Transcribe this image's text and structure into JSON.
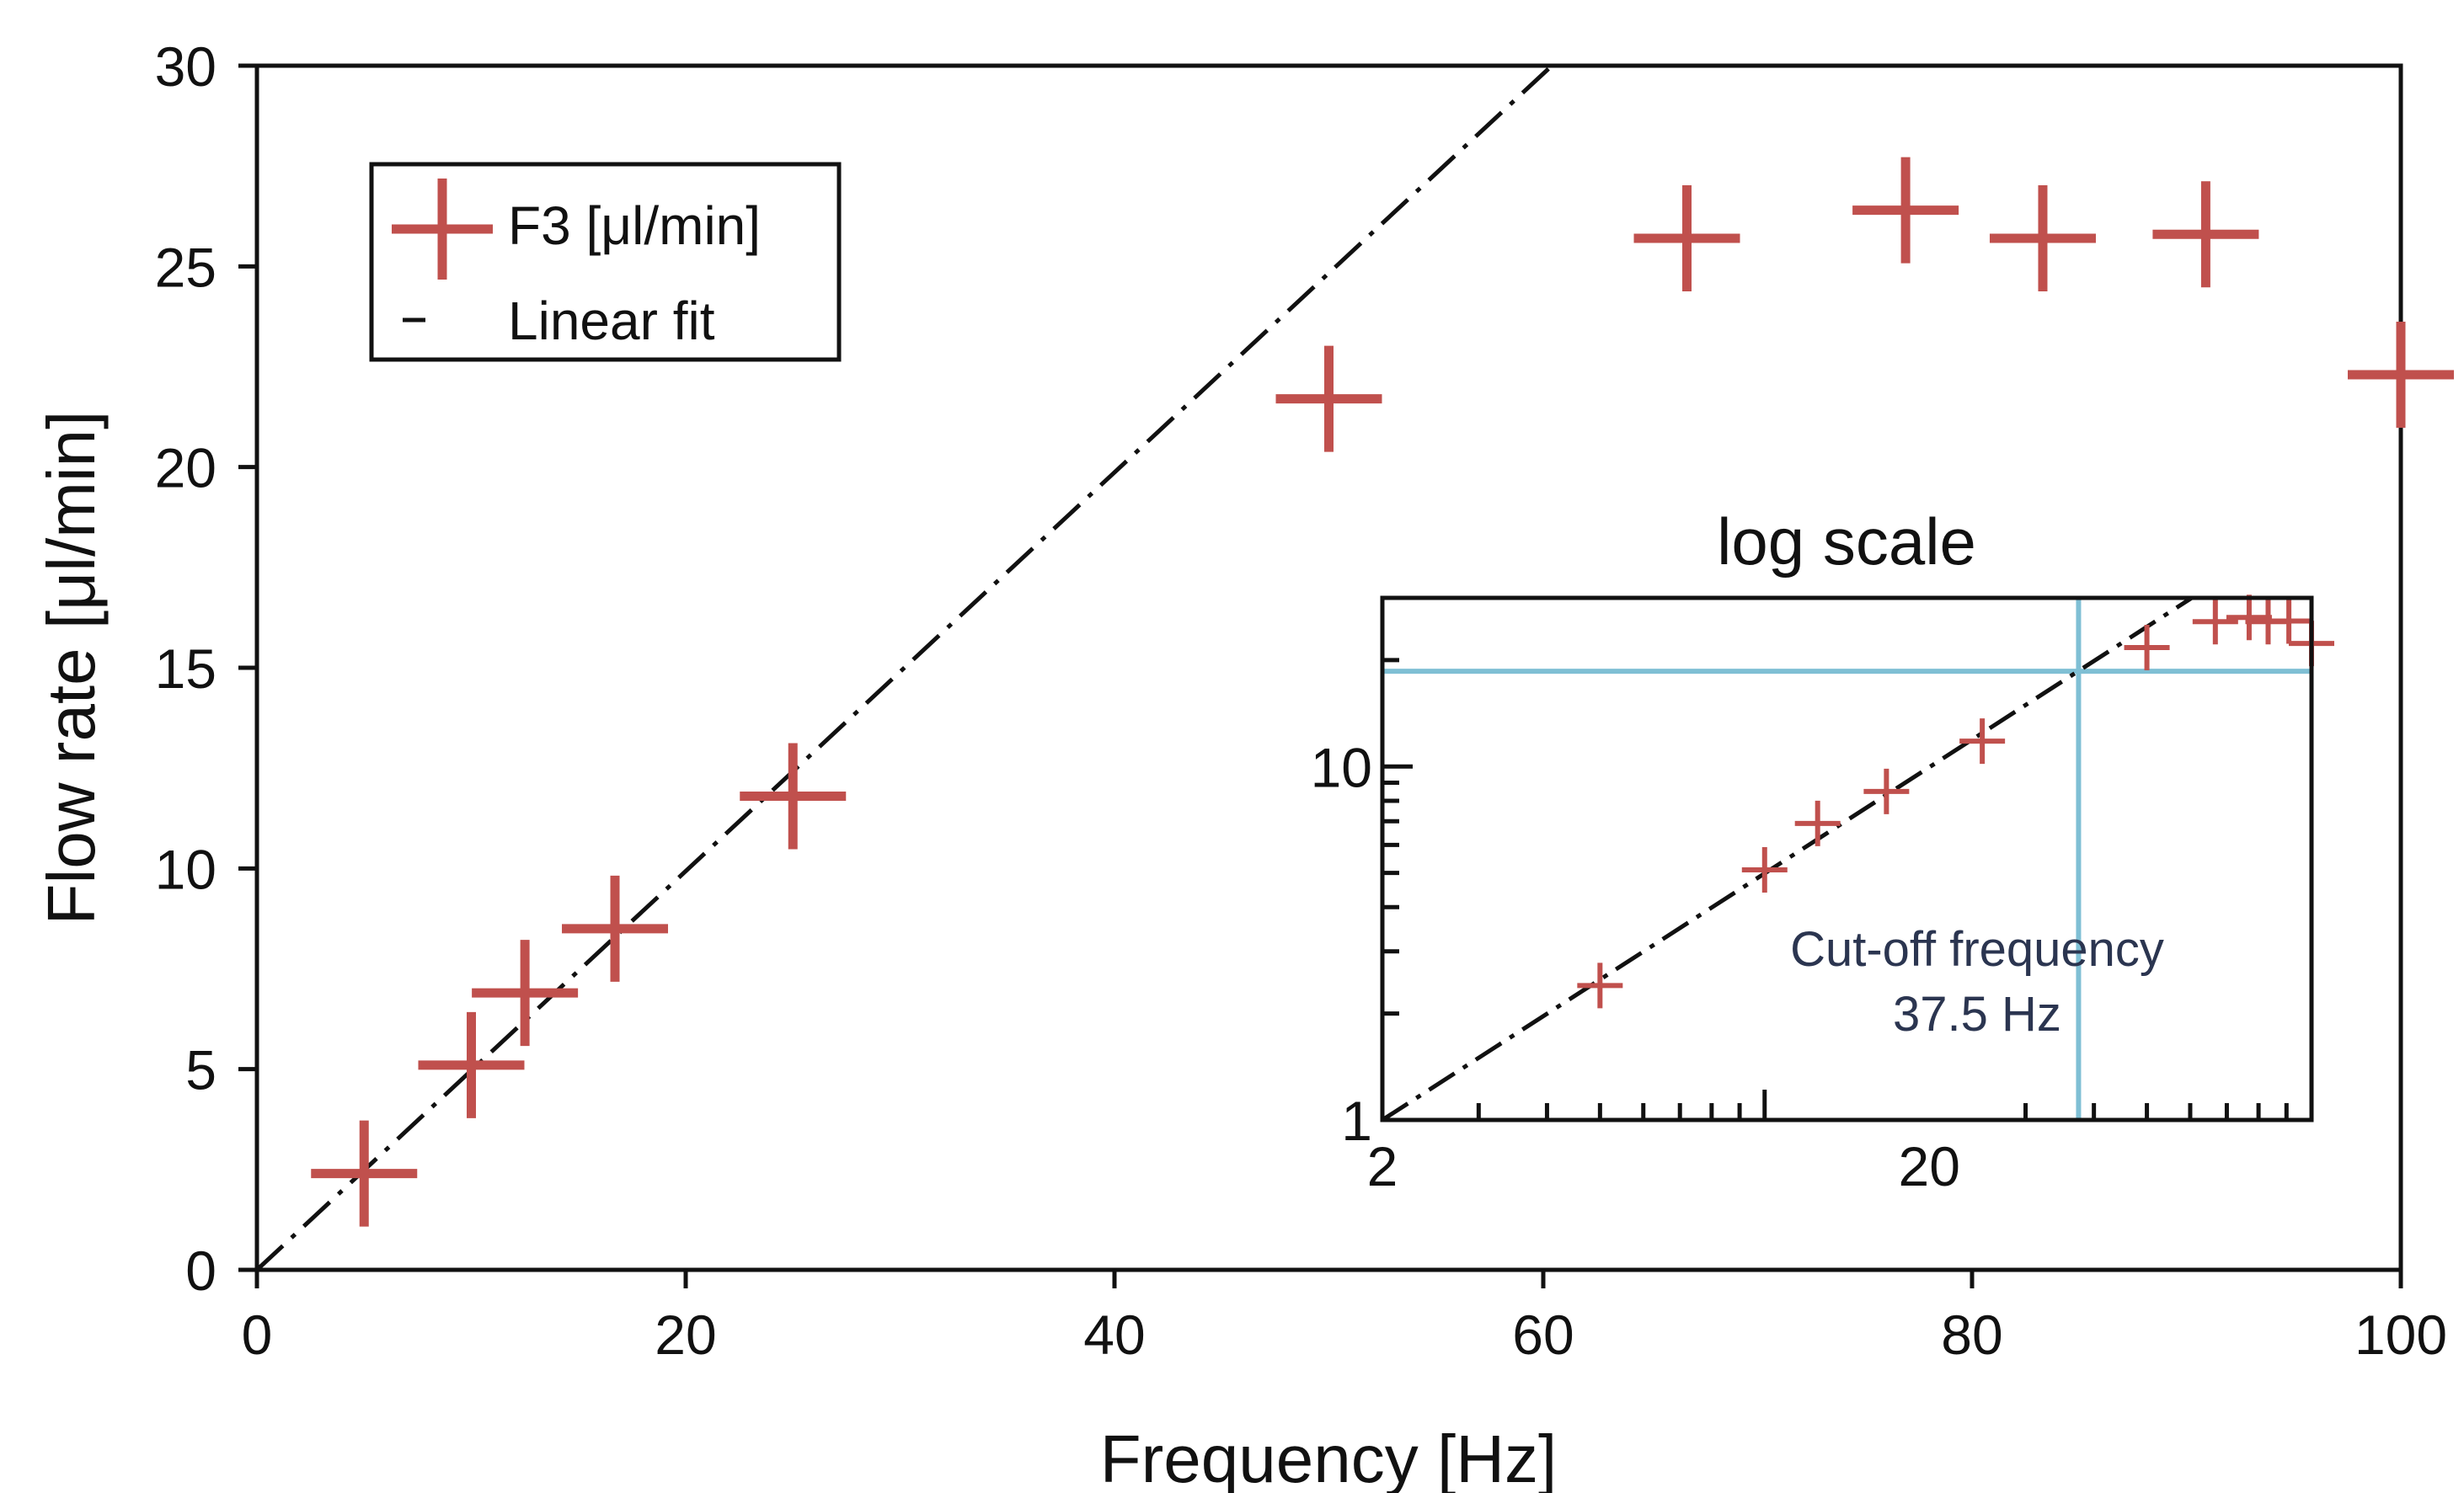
{
  "chart_data": [
    {
      "type": "scatter",
      "xlabel": "Frequency [Hz]",
      "ylabel": "Flow rate [μl/min]",
      "xlim": [
        0,
        100
      ],
      "ylim": [
        0,
        30
      ],
      "x_ticks": [
        "0",
        "20",
        "40",
        "60",
        "80",
        "100"
      ],
      "y_ticks": [
        "0",
        "5",
        "10",
        "15",
        "20",
        "25",
        "30"
      ],
      "grid": false,
      "legend": {
        "placement": "top-left",
        "entries": [
          "F3 [μl/min]",
          "Linear fit"
        ]
      },
      "series": [
        {
          "name": "F3 [μl/min]",
          "marker": "plus",
          "color": "#c0504d",
          "x": [
            5,
            10,
            12.5,
            16.7,
            25,
            50,
            66.7,
            76.9,
            83.3,
            90.9,
            100
          ],
          "y": [
            2.4,
            5.1,
            6.9,
            8.5,
            11.8,
            21.7,
            25.7,
            26.4,
            25.7,
            25.8,
            22.3
          ]
        },
        {
          "name": "Linear fit",
          "style": "dash-dot",
          "color": "#111111",
          "x": [
            0,
            60.4
          ],
          "y": [
            0,
            30
          ]
        }
      ]
    },
    {
      "type": "scatter",
      "title": "log scale",
      "x_scale": "log",
      "y_scale": "log",
      "xlim": [
        2,
        100
      ],
      "ylim": [
        1,
        30
      ],
      "x_ticks": [
        "2",
        "20"
      ],
      "y_ticks": [
        "1",
        "10"
      ],
      "series": [
        {
          "name": "F3 [μl/min]",
          "marker": "plus",
          "color": "#c0504d",
          "x": [
            5,
            10,
            12.5,
            16.7,
            25,
            50,
            66.7,
            76.9,
            83.3,
            90.9,
            100
          ],
          "y": [
            2.4,
            5.1,
            6.9,
            8.5,
            11.8,
            21.7,
            25.7,
            26.4,
            25.7,
            25.8,
            22.3
          ]
        },
        {
          "name": "Linear fit",
          "style": "dash-dot",
          "color": "#111111",
          "x": [
            2,
            60.4
          ],
          "y": [
            1,
            30
          ]
        }
      ],
      "reference_lines": {
        "color": "#7fbfd4",
        "vertical_x": 37.5,
        "horizontal_y": 18.6
      },
      "annotation": {
        "line1": "Cut-off frequency",
        "line2": "37.5 Hz"
      }
    }
  ]
}
